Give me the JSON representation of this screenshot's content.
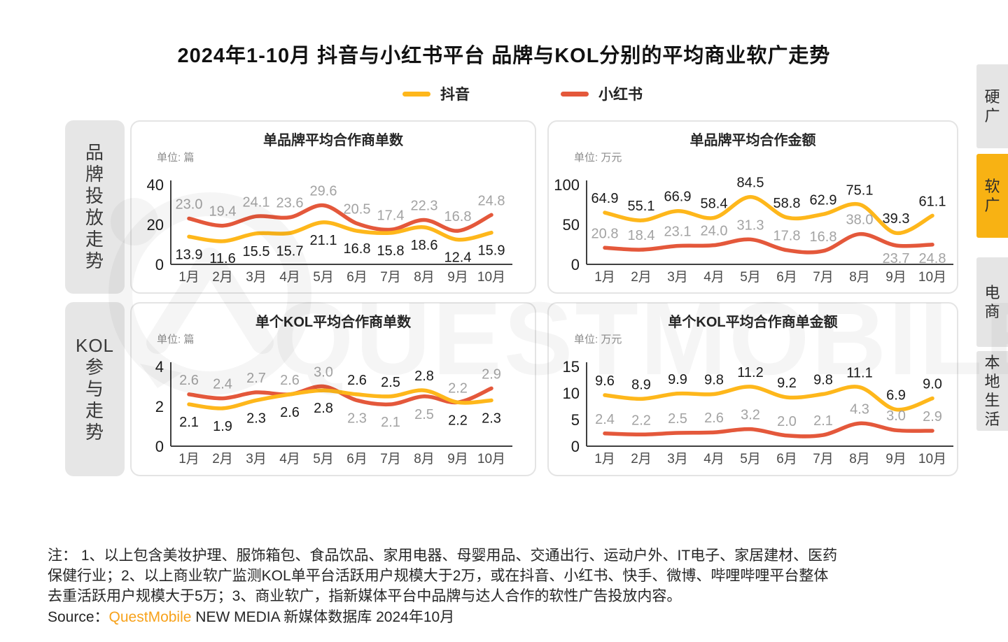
{
  "page": {
    "title": "2024年1-10月 抖音与小红书平台 品牌与KOL分别的平均商业软广走势",
    "watermark_text": "QUESTMOBILE",
    "colors": {
      "douyin": "#FEB71B",
      "xiaohongshu": "#E4583B",
      "active_tab": "#F8B213"
    }
  },
  "legend": [
    {
      "label": "抖音",
      "color": "#FEB71B"
    },
    {
      "label": "小红书",
      "color": "#E4583B"
    }
  ],
  "left_sidebar": [
    {
      "label": "品牌投放走势"
    },
    {
      "label": "KOL参与走势"
    }
  ],
  "right_tabs": [
    {
      "label": "硬广",
      "active": false
    },
    {
      "label": "软广",
      "active": true
    },
    {
      "label": "电商",
      "active": false
    },
    {
      "label": "本地生活",
      "active": false
    }
  ],
  "months": [
    "1月",
    "2月",
    "3月",
    "4月",
    "5月",
    "6月",
    "7月",
    "8月",
    "9月",
    "10月"
  ],
  "chart_data": [
    {
      "type": "line",
      "title": "单品牌平均合作商单数",
      "unit": "单位: 篇",
      "ylim": [
        0,
        40
      ],
      "yticks": [
        0,
        20,
        40
      ],
      "series": [
        {
          "name": "小红书",
          "color": "#E4583B",
          "label_color": "#a3a3a3",
          "values": [
            23.0,
            19.4,
            24.1,
            23.6,
            29.6,
            20.5,
            17.4,
            22.3,
            16.8,
            24.8
          ],
          "labels": [
            "23.0",
            "19.4",
            "24.1",
            "23.6",
            "29.6",
            "20.5",
            "17.4",
            "22.3",
            "16.8",
            "24.8"
          ],
          "label_pos": [
            "a",
            "a",
            "a",
            "a",
            "a",
            "a",
            "a",
            "a",
            "a",
            "a"
          ]
        },
        {
          "name": "抖音",
          "color": "#FEB71B",
          "label_color": "#1a1a1a",
          "values": [
            13.9,
            11.6,
            15.5,
            15.7,
            21.1,
            16.8,
            15.8,
            18.6,
            12.4,
            15.9
          ],
          "labels": [
            "13.9",
            "11.6",
            "15.5",
            "15.7",
            "21.1",
            "16.8",
            "15.8",
            "18.6",
            "12.4",
            "15.9"
          ],
          "label_pos": [
            "b",
            "b",
            "b",
            "b",
            "b",
            "b",
            "b",
            "b",
            "b",
            "b"
          ]
        }
      ]
    },
    {
      "type": "line",
      "title": "单品牌平均合作金额",
      "unit": "单位: 万元",
      "ylim": [
        0,
        100
      ],
      "yticks": [
        0,
        50,
        100
      ],
      "series": [
        {
          "name": "小红书",
          "color": "#E4583B",
          "label_color": "#a3a3a3",
          "values": [
            20.8,
            18.4,
            23.1,
            24.0,
            31.3,
            17.8,
            16.8,
            38.0,
            23.7,
            24.8
          ],
          "labels": [
            "20.8",
            "18.4",
            "23.1",
            "24.0",
            "31.3",
            "17.8",
            "16.8",
            "38.0",
            "23.7",
            "24.8"
          ],
          "label_pos": [
            "a",
            "a",
            "a",
            "a",
            "a",
            "a",
            "a",
            "a",
            "b",
            "b"
          ]
        },
        {
          "name": "抖音",
          "color": "#FEB71B",
          "label_color": "#1a1a1a",
          "values": [
            64.9,
            55.1,
            66.9,
            58.4,
            84.5,
            58.8,
            62.9,
            75.1,
            39.3,
            61.1
          ],
          "labels": [
            "64.9",
            "55.1",
            "66.9",
            "58.4",
            "84.5",
            "58.8",
            "62.9",
            "75.1",
            "39.3",
            "61.1"
          ],
          "label_pos": [
            "a",
            "a",
            "a",
            "a",
            "a",
            "a",
            "a",
            "a",
            "a",
            "a"
          ]
        }
      ]
    },
    {
      "type": "line",
      "title": "单个KOL平均合作商单数",
      "unit": "单位: 篇",
      "ylim": [
        0,
        4
      ],
      "yticks": [
        0,
        2,
        4
      ],
      "series": [
        {
          "name": "小红书",
          "color": "#E4583B",
          "label_color": "#a3a3a3",
          "values": [
            2.6,
            2.4,
            2.7,
            2.6,
            3.0,
            2.3,
            2.1,
            2.5,
            2.2,
            2.9
          ],
          "labels": [
            "2.6",
            "2.4",
            "2.7",
            "2.6",
            "3.0",
            "2.3",
            "2.1",
            "2.5",
            "2.2",
            "2.9"
          ],
          "label_pos": [
            "a",
            "a",
            "a",
            "a",
            "a",
            "b",
            "b",
            "b",
            "a",
            "a"
          ]
        },
        {
          "name": "抖音",
          "color": "#FEB71B",
          "label_color": "#1a1a1a",
          "values": [
            2.1,
            1.9,
            2.3,
            2.6,
            2.8,
            2.6,
            2.5,
            2.8,
            2.2,
            2.3
          ],
          "labels": [
            "2.1",
            "1.9",
            "2.3",
            "2.6",
            "2.8",
            "2.6",
            "2.5",
            "2.8",
            "2.2",
            "2.3"
          ],
          "label_pos": [
            "b",
            "b",
            "b",
            "b",
            "b",
            "a",
            "a",
            "a",
            "b",
            "b"
          ]
        }
      ]
    },
    {
      "type": "line",
      "title": "单个KOL平均合作商单金额",
      "unit": "单位: 万元",
      "ylim": [
        0,
        15
      ],
      "yticks": [
        0,
        5,
        10,
        15
      ],
      "series": [
        {
          "name": "小红书",
          "color": "#E4583B",
          "label_color": "#a3a3a3",
          "values": [
            2.4,
            2.2,
            2.5,
            2.6,
            3.2,
            2.0,
            2.1,
            4.3,
            3.0,
            2.9
          ],
          "labels": [
            "2.4",
            "2.2",
            "2.5",
            "2.6",
            "3.2",
            "2.0",
            "2.1",
            "4.3",
            "3.0",
            "2.9"
          ],
          "label_pos": [
            "a",
            "a",
            "a",
            "a",
            "a",
            "a",
            "a",
            "a",
            "a",
            "a"
          ]
        },
        {
          "name": "抖音",
          "color": "#FEB71B",
          "label_color": "#1a1a1a",
          "values": [
            9.6,
            8.9,
            9.9,
            9.8,
            11.2,
            9.2,
            9.8,
            11.1,
            6.9,
            9.0
          ],
          "labels": [
            "9.6",
            "8.9",
            "9.9",
            "9.8",
            "11.2",
            "9.2",
            "9.8",
            "11.1",
            "6.9",
            "9.0"
          ],
          "label_pos": [
            "a",
            "a",
            "a",
            "a",
            "a",
            "a",
            "a",
            "a",
            "a",
            "a"
          ]
        }
      ]
    }
  ],
  "footer": {
    "note_lines": [
      "注： 1、以上包含美妆护理、服饰箱包、食品饮品、家用电器、母婴用品、交通出行、运动户外、IT电子、家居建材、医药",
      "保健行业；2、以上商业软广监测KOL单平台活跃用户规模大于2万，或在抖音、小红书、快手、微博、哔哩哔哩平台整体",
      "去重活跃用户规模大于5万；3、商业软广，指新媒体平台中品牌与达人合作的软性广告投放内容。"
    ],
    "source_prefix": "Source：",
    "source_brand": "QuestMobile",
    "source_rest": " NEW MEDIA 新媒体数据库 2024年10月"
  }
}
